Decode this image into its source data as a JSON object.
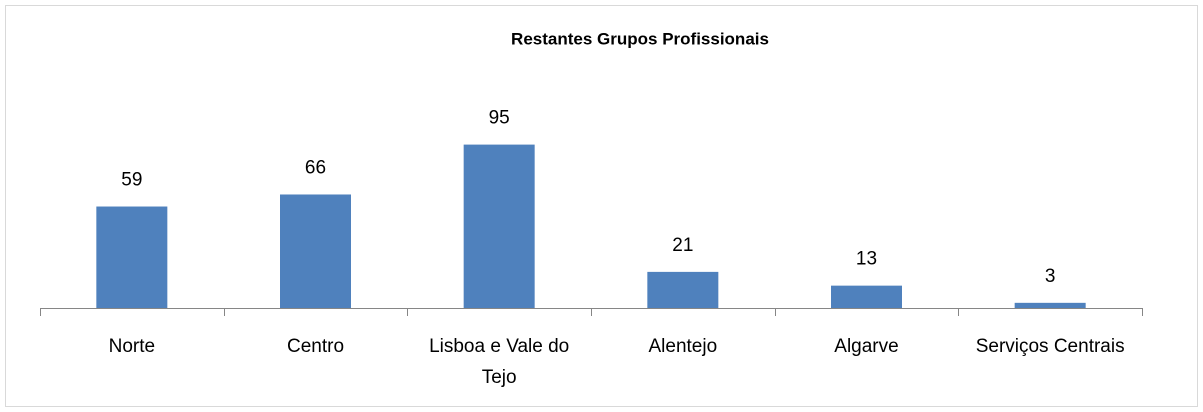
{
  "chart_data": {
    "type": "bar",
    "title": "Restantes Grupos Profissionais",
    "categories": [
      "Norte",
      "Centro",
      "Lisboa e Vale do Tejo",
      "Alentejo",
      "Algarve",
      "Serviços Centrais"
    ],
    "values": [
      59,
      66,
      95,
      21,
      13,
      3
    ],
    "color": "#4f81bd",
    "ylim": [
      0,
      100
    ]
  }
}
